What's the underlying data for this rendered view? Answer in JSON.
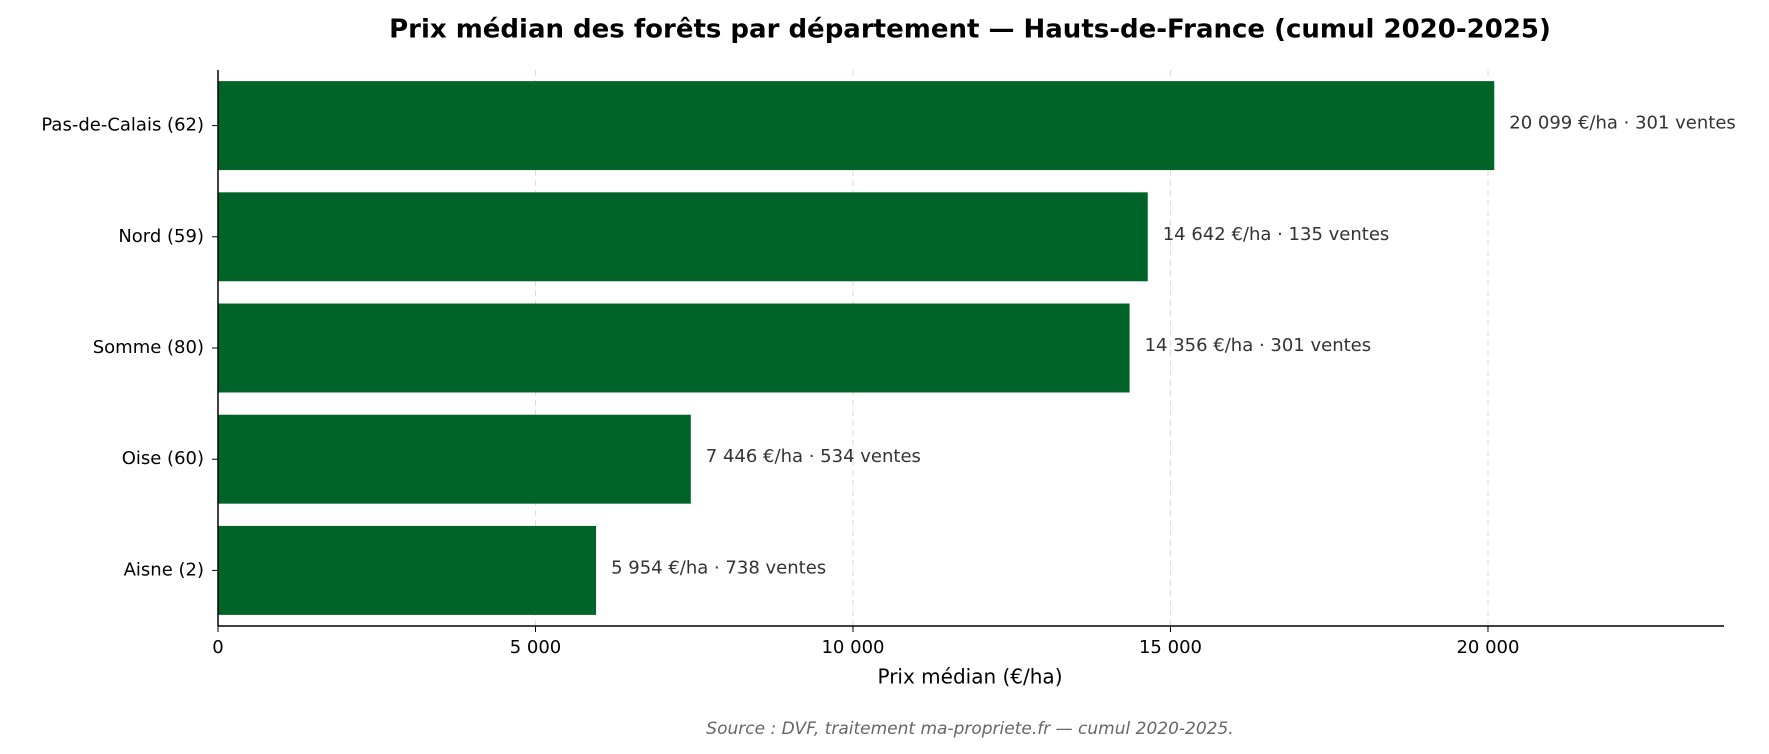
{
  "chart_data": {
    "type": "barh",
    "title": "Prix médian des forêts par département — Hauts-de-France (cumul 2020-2025)",
    "xlabel": "Prix médian (€/ha)",
    "source": "Source : DVF, traitement ma-propriete.fr — cumul 2020-2025.",
    "categories": [
      "Pas-de-Calais (62)",
      "Nord (59)",
      "Somme (80)",
      "Oise (60)",
      "Aisne (2)"
    ],
    "values": [
      20099,
      14642,
      14356,
      7446,
      5954
    ],
    "value_labels": [
      "20 099 €/ha · 301 ventes",
      "14 642 €/ha · 135 ventes",
      "14 356 €/ha · 301 ventes",
      "7 446 €/ha · 534 ventes",
      "5 954 €/ha · 738 ventes"
    ],
    "color": "#006429",
    "xlim": [
      0,
      23717
    ],
    "xticks": [
      0,
      {
        "value": 5000,
        "label": "5 000"
      },
      {
        "value": 10000,
        "label": "10 000"
      },
      {
        "value": 15000,
        "label": "15 000"
      },
      {
        "value": 20000,
        "label": "20 000"
      }
    ],
    "grid": true
  }
}
